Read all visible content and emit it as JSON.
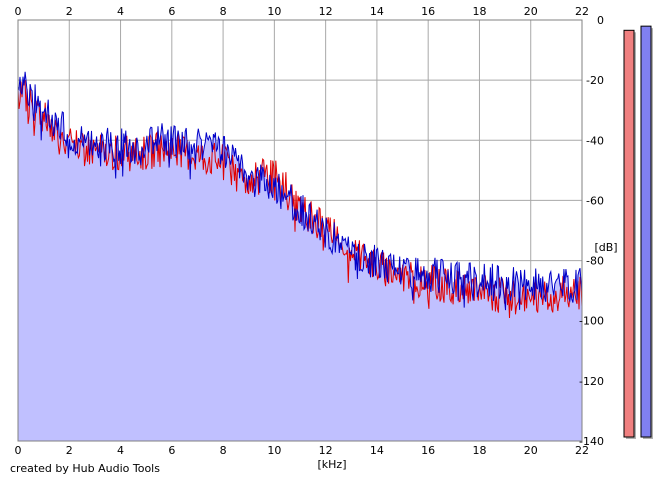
{
  "chart_data": {
    "type": "area",
    "xlabel": "[kHz]",
    "ylabel": "[dB]",
    "xlim": [
      0,
      22
    ],
    "ylim": [
      -140,
      0
    ],
    "x_ticks": [
      0,
      2,
      4,
      6,
      8,
      10,
      12,
      14,
      16,
      18,
      20,
      22
    ],
    "y_ticks": [
      0,
      -20,
      -40,
      -60,
      -80,
      -100,
      -120,
      -140
    ],
    "y_tick_labels": [
      "0",
      "-20",
      "-40",
      "-60",
      "-80",
      "-100",
      "-120",
      "-140"
    ],
    "grid": true,
    "series": [
      {
        "color": "#e00000",
        "x": [
          0,
          0.5,
          1,
          1.5,
          2,
          2.5,
          3,
          3.5,
          4,
          4.5,
          5,
          5.5,
          6,
          6.5,
          7,
          7.5,
          8,
          8.5,
          9,
          9.5,
          10,
          10.5,
          11,
          11.5,
          12,
          12.5,
          13,
          13.5,
          14,
          14.5,
          15,
          15.5,
          16,
          16.5,
          17,
          17.5,
          18,
          18.5,
          19,
          19.5,
          20,
          20.5,
          21,
          21.5,
          22
        ],
        "values": [
          -22,
          -27,
          -32,
          -38,
          -42,
          -43,
          -43,
          -44,
          -44,
          -45,
          -44,
          -43,
          -43,
          -44,
          -45,
          -46,
          -47,
          -51,
          -53,
          -52,
          -52,
          -57,
          -62,
          -66,
          -70,
          -72,
          -76,
          -79,
          -82,
          -83,
          -85,
          -86,
          -87,
          -88,
          -89,
          -89,
          -90,
          -91,
          -92,
          -92,
          -93,
          -92,
          -91,
          -91,
          -90
        ]
      },
      {
        "color": "#0000c8",
        "x": [
          0,
          0.5,
          1,
          1.5,
          2,
          2.5,
          3,
          3.5,
          4,
          4.5,
          5,
          5.5,
          6,
          6.5,
          7,
          7.5,
          8,
          8.5,
          9,
          9.5,
          10,
          10.5,
          11,
          11.5,
          12,
          12.5,
          13,
          13.5,
          14,
          14.5,
          15,
          15.5,
          16,
          16.5,
          17,
          17.5,
          18,
          18.5,
          19,
          19.5,
          20,
          20.5,
          21,
          21.5,
          22
        ],
        "values": [
          -21,
          -25,
          -30,
          -35,
          -38,
          -40,
          -41,
          -41,
          -42,
          -42,
          -41,
          -40,
          -40,
          -41,
          -42,
          -43,
          -44,
          -48,
          -51,
          -52,
          -55,
          -59,
          -63,
          -67,
          -71,
          -74,
          -77,
          -79,
          -81,
          -82,
          -83,
          -84,
          -85,
          -85,
          -86,
          -86,
          -87,
          -87,
          -88,
          -88,
          -89,
          -88,
          -88,
          -88,
          -87
        ]
      }
    ],
    "fill_color": "#c0c0ff",
    "level_meters": [
      {
        "color": "#f08080",
        "level": 0.98
      },
      {
        "color": "#8080f0",
        "level": 0.99
      }
    ]
  },
  "footer": {
    "credit": "created by Hub Audio Tools"
  }
}
